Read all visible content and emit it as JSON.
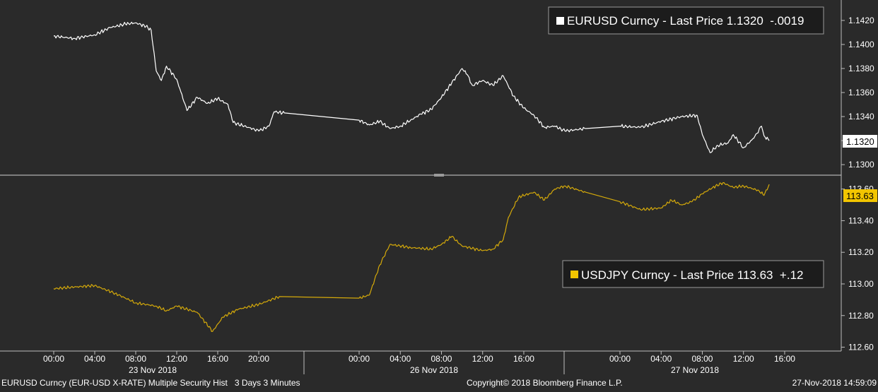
{
  "footer": {
    "left": "EURUSD Curncy (EUR-USD X-RATE) Multiple Security Hist   3 Days 3 Minutes",
    "center": "Copyright© 2018 Bloomberg Finance L.P.",
    "right": "27-Nov-2018 14:59:09"
  },
  "colors": {
    "background": "#2a2a2a",
    "eurusd_line": "#ffffff",
    "usdjpy_line": "#d4a90a",
    "usdjpy_badge": "#f2c500",
    "axis": "#bfbfbf"
  },
  "chart_data": [
    {
      "type": "line",
      "panel": "top",
      "legend": {
        "name": "EURUSD Curncy",
        "label": "Last Price",
        "value": "1.1320",
        "change": "-.0019",
        "text": "EURUSD Curncy - Last Price 1.1320  -.0019",
        "placement": "top-right"
      },
      "last_badge": "1.1320",
      "ylim": [
        1.1293,
        1.1437
      ],
      "y_ticks": [
        "1.1420",
        "1.1400",
        "1.1380",
        "1.1360",
        "1.1340",
        "1.1320",
        "1.1300"
      ],
      "series": [
        {
          "name": "EURUSD Curncy",
          "color": "#ffffff",
          "points": [
            [
              "23 Nov 00:00",
              1.1407
            ],
            [
              "23 Nov 02:00",
              1.1405
            ],
            [
              "23 Nov 04:00",
              1.1408
            ],
            [
              "23 Nov 05:30",
              1.1414
            ],
            [
              "23 Nov 07:00",
              1.1417
            ],
            [
              "23 Nov 08:00",
              1.1418
            ],
            [
              "23 Nov 09:00",
              1.1415
            ],
            [
              "23 Nov 09:30",
              1.1412
            ],
            [
              "23 Nov 10:00",
              1.1378
            ],
            [
              "23 Nov 10:30",
              1.137
            ],
            [
              "23 Nov 11:00",
              1.1382
            ],
            [
              "23 Nov 12:00",
              1.1371
            ],
            [
              "23 Nov 13:00",
              1.1345
            ],
            [
              "23 Nov 14:00",
              1.1356
            ],
            [
              "23 Nov 15:00",
              1.1351
            ],
            [
              "23 Nov 16:00",
              1.1355
            ],
            [
              "23 Nov 17:00",
              1.135
            ],
            [
              "23 Nov 17:30",
              1.1335
            ],
            [
              "23 Nov 19:00",
              1.1331
            ],
            [
              "23 Nov 20:00",
              1.1328
            ],
            [
              "23 Nov 21:00",
              1.1332
            ],
            [
              "23 Nov 21:30",
              1.1344
            ],
            [
              "23 Nov 22:30",
              1.1343
            ],
            [
              "26 Nov 00:00",
              1.1337
            ],
            [
              "26 Nov 01:00",
              1.1333
            ],
            [
              "26 Nov 02:00",
              1.1336
            ],
            [
              "26 Nov 03:00",
              1.133
            ],
            [
              "26 Nov 04:00",
              1.1332
            ],
            [
              "26 Nov 05:00",
              1.1337
            ],
            [
              "26 Nov 06:00",
              1.1342
            ],
            [
              "26 Nov 07:00",
              1.1346
            ],
            [
              "26 Nov 08:00",
              1.1356
            ],
            [
              "26 Nov 09:00",
              1.1368
            ],
            [
              "26 Nov 10:00",
              1.138
            ],
            [
              "26 Nov 10:30",
              1.1375
            ],
            [
              "26 Nov 11:00",
              1.1366
            ],
            [
              "26 Nov 12:00",
              1.137
            ],
            [
              "26 Nov 13:00",
              1.1366
            ],
            [
              "26 Nov 14:00",
              1.1374
            ],
            [
              "26 Nov 15:00",
              1.1357
            ],
            [
              "26 Nov 16:00",
              1.1347
            ],
            [
              "26 Nov 17:00",
              1.1341
            ],
            [
              "26 Nov 18:00",
              1.1331
            ],
            [
              "26 Nov 19:00",
              1.1332
            ],
            [
              "26 Nov 20:00",
              1.1328
            ],
            [
              "26 Nov 22:00",
              1.133
            ],
            [
              "27 Nov 00:00",
              1.1332
            ],
            [
              "27 Nov 02:00",
              1.1331
            ],
            [
              "27 Nov 04:00",
              1.1336
            ],
            [
              "27 Nov 06:00",
              1.134
            ],
            [
              "27 Nov 07:30",
              1.1341
            ],
            [
              "27 Nov 08:00",
              1.1325
            ],
            [
              "27 Nov 08:45",
              1.131
            ],
            [
              "27 Nov 09:30",
              1.1316
            ],
            [
              "27 Nov 10:30",
              1.1318
            ],
            [
              "27 Nov 11:00",
              1.1325
            ],
            [
              "27 Nov 12:00",
              1.1314
            ],
            [
              "27 Nov 13:00",
              1.1322
            ],
            [
              "27 Nov 13:45",
              1.1332
            ],
            [
              "27 Nov 14:00",
              1.1324
            ],
            [
              "27 Nov 14:30",
              1.132
            ]
          ]
        }
      ]
    },
    {
      "type": "line",
      "panel": "bottom",
      "legend": {
        "name": "USDJPY Curncy",
        "label": "Last Price",
        "value": "113.63",
        "change": "+.12",
        "text": "USDJPY Curncy - Last Price 113.63  +.12",
        "placement": "middle-right"
      },
      "last_badge": "113.63",
      "ylim": [
        112.58,
        113.67
      ],
      "y_ticks": [
        "113.60",
        "113.40",
        "113.20",
        "113.00",
        "112.80",
        "112.60"
      ],
      "series": [
        {
          "name": "USDJPY Curncy",
          "color": "#d4a90a",
          "points": [
            [
              "23 Nov 00:00",
              112.97
            ],
            [
              "23 Nov 02:00",
              112.98
            ],
            [
              "23 Nov 04:00",
              112.99
            ],
            [
              "23 Nov 06:00",
              112.94
            ],
            [
              "23 Nov 08:00",
              112.88
            ],
            [
              "23 Nov 10:00",
              112.86
            ],
            [
              "23 Nov 11:00",
              112.83
            ],
            [
              "23 Nov 12:00",
              112.86
            ],
            [
              "23 Nov 14:00",
              112.82
            ],
            [
              "23 Nov 15:30",
              112.7
            ],
            [
              "23 Nov 16:30",
              112.79
            ],
            [
              "23 Nov 18:00",
              112.84
            ],
            [
              "23 Nov 20:00",
              112.87
            ],
            [
              "23 Nov 22:00",
              112.92
            ],
            [
              "26 Nov 00:00",
              112.91
            ],
            [
              "26 Nov 01:00",
              112.93
            ],
            [
              "26 Nov 02:00",
              113.12
            ],
            [
              "26 Nov 03:00",
              113.25
            ],
            [
              "26 Nov 05:00",
              113.23
            ],
            [
              "26 Nov 07:00",
              113.22
            ],
            [
              "26 Nov 08:00",
              113.25
            ],
            [
              "26 Nov 09:00",
              113.3
            ],
            [
              "26 Nov 10:00",
              113.24
            ],
            [
              "26 Nov 12:00",
              113.21
            ],
            [
              "26 Nov 13:00",
              113.22
            ],
            [
              "26 Nov 14:00",
              113.28
            ],
            [
              "26 Nov 14:30",
              113.42
            ],
            [
              "26 Nov 15:30",
              113.55
            ],
            [
              "26 Nov 17:00",
              113.58
            ],
            [
              "26 Nov 18:00",
              113.53
            ],
            [
              "26 Nov 19:00",
              113.6
            ],
            [
              "26 Nov 20:00",
              113.62
            ],
            [
              "26 Nov 22:00",
              113.58
            ],
            [
              "27 Nov 00:00",
              113.52
            ],
            [
              "27 Nov 02:00",
              113.47
            ],
            [
              "27 Nov 04:00",
              113.48
            ],
            [
              "27 Nov 05:00",
              113.53
            ],
            [
              "27 Nov 06:00",
              113.5
            ],
            [
              "27 Nov 07:00",
              113.52
            ],
            [
              "27 Nov 08:00",
              113.57
            ],
            [
              "27 Nov 09:00",
              113.61
            ],
            [
              "27 Nov 10:00",
              113.64
            ],
            [
              "27 Nov 11:00",
              113.61
            ],
            [
              "27 Nov 12:00",
              113.62
            ],
            [
              "27 Nov 13:30",
              113.59
            ],
            [
              "27 Nov 14:00",
              113.56
            ],
            [
              "27 Nov 14:30",
              113.63
            ]
          ]
        }
      ]
    }
  ],
  "x_axis": {
    "hour_ticks": [
      "23 Nov 00:00",
      "23 Nov 04:00",
      "23 Nov 08:00",
      "23 Nov 12:00",
      "23 Nov 16:00",
      "23 Nov 20:00",
      "26 Nov 00:00",
      "26 Nov 04:00",
      "26 Nov 08:00",
      "26 Nov 12:00",
      "26 Nov 16:00",
      "27 Nov 00:00",
      "27 Nov 04:00",
      "27 Nov 08:00",
      "27 Nov 12:00",
      "27 Nov 16:00"
    ],
    "hour_labels": [
      "00:00",
      "04:00",
      "08:00",
      "12:00",
      "16:00",
      "20:00",
      "00:00",
      "04:00",
      "08:00",
      "12:00",
      "16:00",
      "00:00",
      "04:00",
      "08:00",
      "12:00",
      "16:00"
    ],
    "day_labels": [
      "23 Nov 2018",
      "26 Nov 2018",
      "27 Nov 2018"
    ]
  }
}
